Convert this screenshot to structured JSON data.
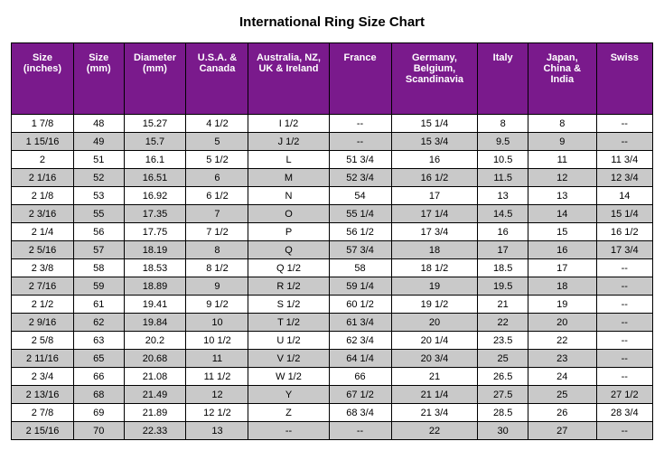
{
  "title": "International Ring Size Chart",
  "header_bg": "#7a1a8c",
  "header_fg": "#ffffff",
  "row_bg_even": "#ffffff",
  "row_bg_odd": "#c9c9c9",
  "border_color": "#000000",
  "font_family": "Arial, sans-serif",
  "header_fontsize": 11,
  "cell_fontsize": 11,
  "columns": [
    "Size (inches)",
    "Size (mm)",
    "Diameter (mm)",
    "U.S.A. & Canada",
    "Australia, NZ, UK & Ireland",
    "France",
    "Germany, Belgium, Scandinavia",
    "Italy",
    "Japan, China & India",
    "Swiss"
  ],
  "rows": [
    [
      "1  7/8",
      "48",
      "15.27",
      "4  1/2",
      "I  1/2",
      "--",
      "15  1/4",
      "8",
      "8",
      "--"
    ],
    [
      "1 15/16",
      "49",
      "15.7",
      "5",
      "J  1/2",
      "--",
      "15  3/4",
      "9.5",
      "9",
      "--"
    ],
    [
      "2",
      "51",
      "16.1",
      "5  1/2",
      "L",
      "51  3/4",
      "16",
      "10.5",
      "11",
      "11  3/4"
    ],
    [
      "2  1/16",
      "52",
      "16.51",
      "6",
      "M",
      "52  3/4",
      "16  1/2",
      "11.5",
      "12",
      "12  3/4"
    ],
    [
      "2  1/8",
      "53",
      "16.92",
      "6  1/2",
      "N",
      "54",
      "17",
      "13",
      "13",
      "14"
    ],
    [
      "2  3/16",
      "55",
      "17.35",
      "7",
      "O",
      "55  1/4",
      "17  1/4",
      "14.5",
      "14",
      "15  1/4"
    ],
    [
      "2  1/4",
      "56",
      "17.75",
      "7  1/2",
      "P",
      "56  1/2",
      "17  3/4",
      "16",
      "15",
      "16  1/2"
    ],
    [
      "2  5/16",
      "57",
      "18.19",
      "8",
      "Q",
      "57  3/4",
      "18",
      "17",
      "16",
      "17  3/4"
    ],
    [
      "2  3/8",
      "58",
      "18.53",
      "8  1/2",
      "Q  1/2",
      "58",
      "18  1/2",
      "18.5",
      "17",
      "--"
    ],
    [
      "2  7/16",
      "59",
      "18.89",
      "9",
      "R  1/2",
      "59  1/4",
      "19",
      "19.5",
      "18",
      "--"
    ],
    [
      "2  1/2",
      "61",
      "19.41",
      "9  1/2",
      "S  1/2",
      "60  1/2",
      "19  1/2",
      "21",
      "19",
      "--"
    ],
    [
      "2  9/16",
      "62",
      "19.84",
      "10",
      "T  1/2",
      "61  3/4",
      "20",
      "22",
      "20",
      "--"
    ],
    [
      "2  5/8",
      "63",
      "20.2",
      "10  1/2",
      "U  1/2",
      "62  3/4",
      "20  1/4",
      "23.5",
      "22",
      "--"
    ],
    [
      "2 11/16",
      "65",
      "20.68",
      "11",
      "V  1/2",
      "64  1/4",
      "20  3/4",
      "25",
      "23",
      "--"
    ],
    [
      "2  3/4",
      "66",
      "21.08",
      "11  1/2",
      "W  1/2",
      "66",
      "21",
      "26.5",
      "24",
      "--"
    ],
    [
      "2 13/16",
      "68",
      "21.49",
      "12",
      "Y",
      "67  1/2",
      "21  1/4",
      "27.5",
      "25",
      "27  1/2"
    ],
    [
      "2  7/8",
      "69",
      "21.89",
      "12  1/2",
      "Z",
      "68  3/4",
      "21  3/4",
      "28.5",
      "26",
      "28  3/4"
    ],
    [
      "2 15/16",
      "70",
      "22.33",
      "13",
      "--",
      "--",
      "22",
      "30",
      "27",
      "--"
    ]
  ],
  "col_widths_pct": [
    9,
    7,
    9,
    9,
    12,
    9,
    13,
    7,
    10,
    8
  ]
}
